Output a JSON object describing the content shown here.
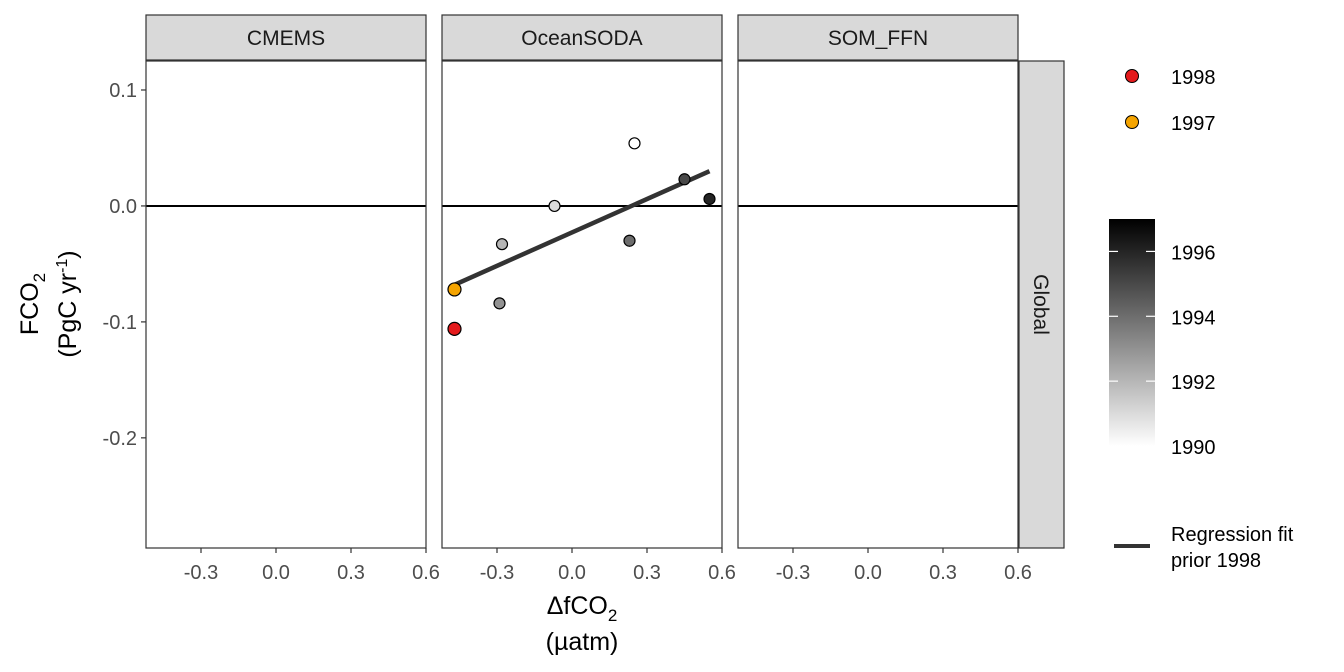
{
  "chart_data": {
    "type": "scatter",
    "panels": [
      "CMEMS",
      "OceanSODA",
      "SOM_FFN"
    ],
    "row_strip": "Global",
    "xlabel_main": "ΔfCO",
    "xlabel_sub": "2",
    "xlabel_unit": "(µatm)",
    "ylabel_main": "FCO",
    "ylabel_sub": "2",
    "ylabel_unit_pre": "(PgC yr",
    "ylabel_unit_sup": "-1",
    "ylabel_unit_post": ")",
    "xlim": [
      -0.52,
      0.6
    ],
    "ylim": [
      -0.295,
      0.125
    ],
    "x_ticks": [
      -0.3,
      0.0,
      0.3,
      0.6
    ],
    "x_tick_labels": [
      "-0.3",
      "0.0",
      "0.3",
      "0.6"
    ],
    "y_ticks": [
      0.1,
      0.0,
      -0.1,
      -0.2
    ],
    "y_tick_labels": [
      "0.1",
      "0.0",
      "-0.1",
      "-0.2"
    ],
    "hline_y": 0.0,
    "grid": false,
    "points": [
      {
        "panel": "OceanSODA",
        "x": 0.25,
        "y": 0.054,
        "year": 1990
      },
      {
        "panel": "OceanSODA",
        "x": -0.07,
        "y": 0.0,
        "year": 1991
      },
      {
        "panel": "OceanSODA",
        "x": -0.28,
        "y": -0.033,
        "year": 1992
      },
      {
        "panel": "OceanSODA",
        "x": -0.29,
        "y": -0.084,
        "year": 1993
      },
      {
        "panel": "OceanSODA",
        "x": 0.23,
        "y": -0.03,
        "year": 1994
      },
      {
        "panel": "OceanSODA",
        "x": 0.45,
        "y": 0.023,
        "year": 1995
      },
      {
        "panel": "OceanSODA",
        "x": 0.55,
        "y": 0.006,
        "year": 1996
      },
      {
        "panel": "OceanSODA",
        "x": -0.47,
        "y": -0.072,
        "highlight": "1997"
      },
      {
        "panel": "OceanSODA",
        "x": -0.47,
        "y": -0.106,
        "highlight": "1998"
      }
    ],
    "regression": {
      "panel": "OceanSODA",
      "x": [
        -0.47,
        0.55
      ],
      "y": [
        -0.068,
        0.03
      ]
    },
    "highlight_legend": [
      {
        "label": "1998",
        "color": "#e41a1c"
      },
      {
        "label": "1997",
        "color": "#f5a400"
      }
    ],
    "colorbar": {
      "range": [
        1990,
        1997
      ],
      "tick_values": [
        1996,
        1994,
        1992,
        1990
      ],
      "tick_labels": [
        "1996",
        "1994",
        "1992",
        "1990"
      ],
      "low_color": "#ffffff",
      "high_color": "#000000"
    },
    "line_legend": {
      "label_line1": "Regression fit",
      "label_line2": "prior 1998",
      "color": "#333333"
    }
  }
}
